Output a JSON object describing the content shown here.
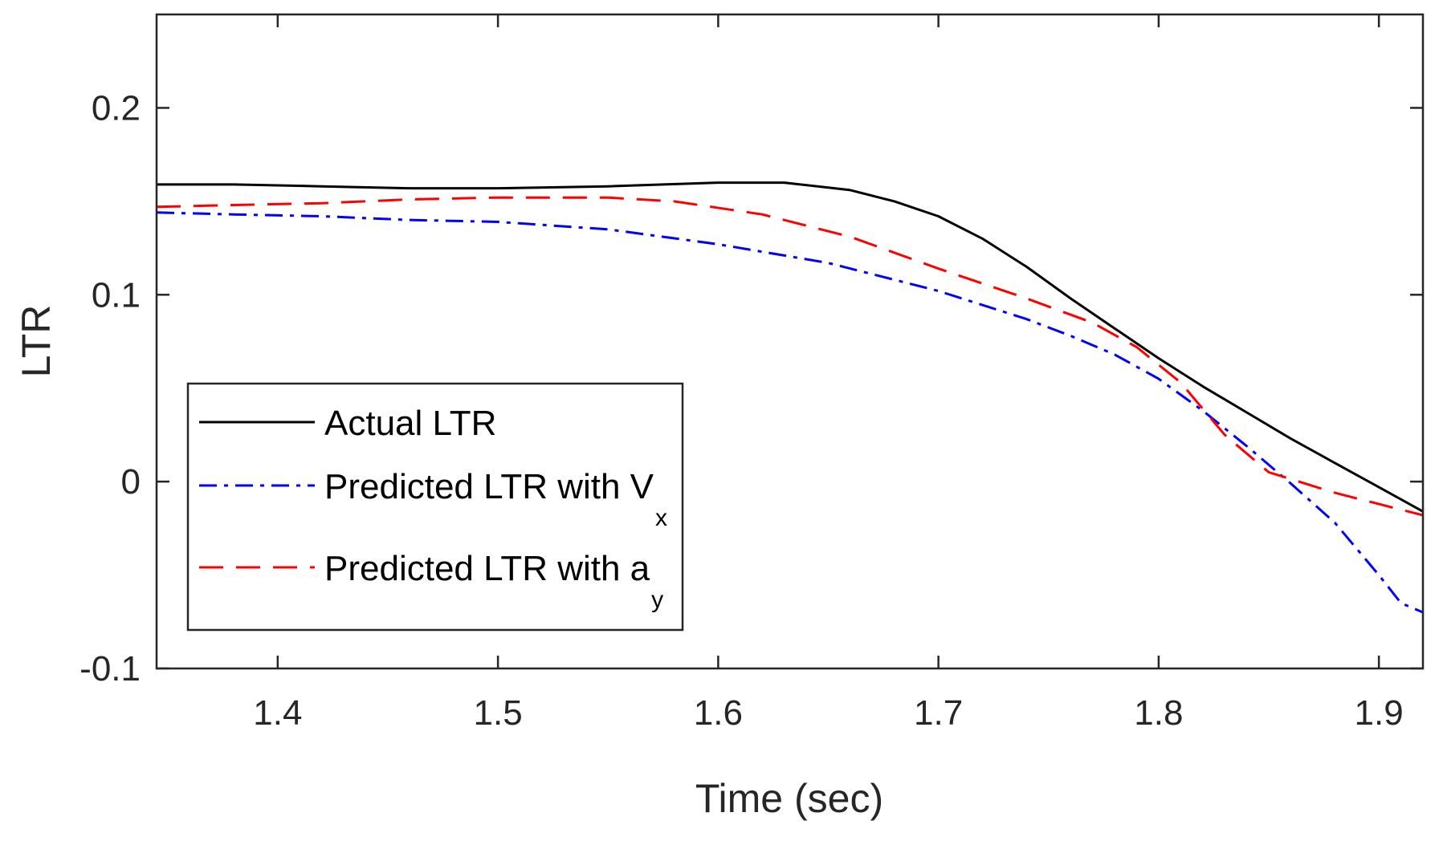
{
  "chart_data": {
    "type": "line",
    "title": "",
    "xlabel": "Time (sec)",
    "ylabel": "LTR",
    "xlim": [
      1.345,
      1.92
    ],
    "ylim": [
      -0.1,
      0.25
    ],
    "xticks": [
      1.4,
      1.5,
      1.6,
      1.7,
      1.8,
      1.9
    ],
    "xtick_labels": [
      "1.4",
      "1.5",
      "1.6",
      "1.7",
      "1.8",
      "1.9"
    ],
    "yticks": [
      -0.1,
      0,
      0.1,
      0.2
    ],
    "ytick_labels": [
      "-0.1",
      "0",
      "0.1",
      "0.2"
    ],
    "grid": false,
    "legend_position": "bottom-left",
    "series": [
      {
        "name": "Actual LTR",
        "legend_main": "Actual LTR",
        "legend_sub": "",
        "color": "#000000",
        "dash": "solid",
        "points": [
          [
            1.345,
            0.159
          ],
          [
            1.38,
            0.159
          ],
          [
            1.42,
            0.158
          ],
          [
            1.46,
            0.157
          ],
          [
            1.5,
            0.157
          ],
          [
            1.55,
            0.158
          ],
          [
            1.6,
            0.16
          ],
          [
            1.63,
            0.16
          ],
          [
            1.66,
            0.156
          ],
          [
            1.68,
            0.15
          ],
          [
            1.7,
            0.142
          ],
          [
            1.72,
            0.13
          ],
          [
            1.74,
            0.115
          ],
          [
            1.76,
            0.098
          ],
          [
            1.78,
            0.082
          ],
          [
            1.8,
            0.066
          ],
          [
            1.82,
            0.051
          ],
          [
            1.84,
            0.037
          ],
          [
            1.86,
            0.023
          ],
          [
            1.88,
            0.01
          ],
          [
            1.9,
            -0.003
          ],
          [
            1.92,
            -0.016
          ]
        ]
      },
      {
        "name": "Predicted LTR with Vx",
        "legend_main": "Predicted LTR with V",
        "legend_sub": "x",
        "color": "#0000ff",
        "dash": "dashdot",
        "points": [
          [
            1.345,
            0.144
          ],
          [
            1.38,
            0.143
          ],
          [
            1.42,
            0.142
          ],
          [
            1.46,
            0.14
          ],
          [
            1.5,
            0.139
          ],
          [
            1.55,
            0.135
          ],
          [
            1.6,
            0.127
          ],
          [
            1.65,
            0.117
          ],
          [
            1.7,
            0.102
          ],
          [
            1.74,
            0.087
          ],
          [
            1.76,
            0.078
          ],
          [
            1.78,
            0.068
          ],
          [
            1.8,
            0.055
          ],
          [
            1.82,
            0.038
          ],
          [
            1.84,
            0.019
          ],
          [
            1.86,
            -0.001
          ],
          [
            1.88,
            -0.022
          ],
          [
            1.9,
            -0.05
          ],
          [
            1.91,
            -0.065
          ],
          [
            1.92,
            -0.07
          ]
        ]
      },
      {
        "name": "Predicted LTR with ay",
        "legend_main": "Predicted LTR with a",
        "legend_sub": "y",
        "color": "#ff0000",
        "dash": "dashed",
        "points": [
          [
            1.345,
            0.147
          ],
          [
            1.38,
            0.148
          ],
          [
            1.42,
            0.149
          ],
          [
            1.46,
            0.151
          ],
          [
            1.5,
            0.152
          ],
          [
            1.55,
            0.152
          ],
          [
            1.58,
            0.15
          ],
          [
            1.62,
            0.143
          ],
          [
            1.66,
            0.131
          ],
          [
            1.7,
            0.114
          ],
          [
            1.74,
            0.098
          ],
          [
            1.77,
            0.085
          ],
          [
            1.79,
            0.072
          ],
          [
            1.81,
            0.053
          ],
          [
            1.83,
            0.025
          ],
          [
            1.85,
            0.005
          ],
          [
            1.88,
            -0.006
          ],
          [
            1.9,
            -0.012
          ],
          [
            1.92,
            -0.018
          ]
        ]
      }
    ]
  }
}
